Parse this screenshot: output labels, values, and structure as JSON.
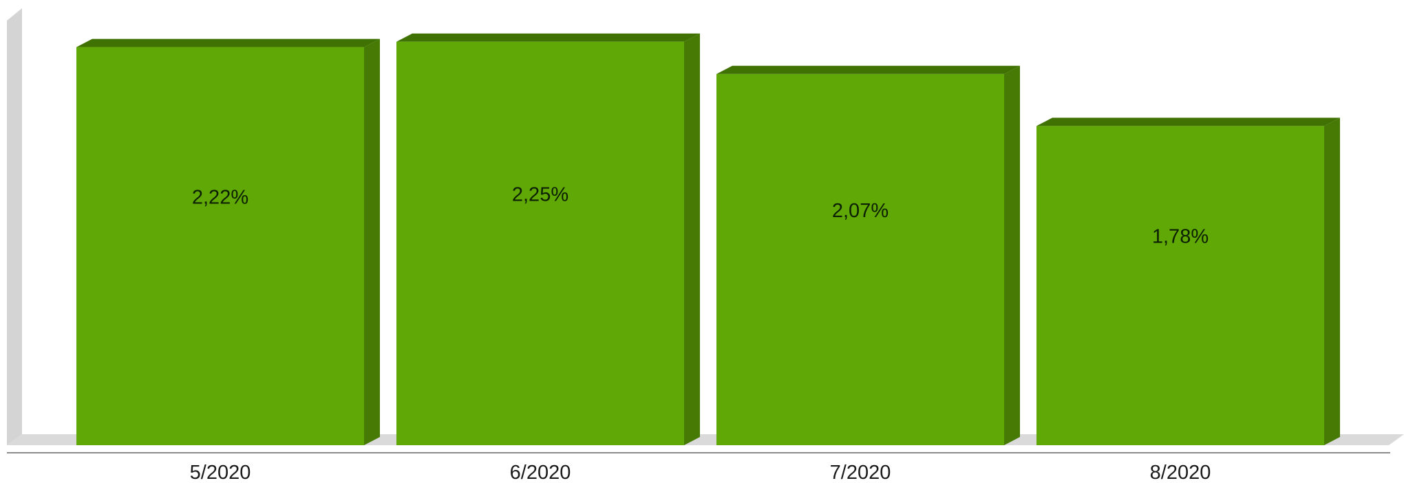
{
  "chart_data": {
    "type": "bar",
    "style": "3d",
    "title": "",
    "xlabel": "",
    "ylabel": "",
    "categories": [
      "5/2020",
      "6/2020",
      "7/2020",
      "8/2020"
    ],
    "values": [
      2.22,
      2.25,
      2.07,
      1.78
    ],
    "value_labels": [
      "2,22%",
      "2,25%",
      "2,07%",
      "1,78%"
    ],
    "ylim": [
      0,
      2.5
    ],
    "grid": false,
    "legend": "none",
    "bar_color": "#5fa805",
    "bar_side_color": "#467a05",
    "bar_top_color": "#3f7103",
    "floor_color": "#dadada",
    "wall_color": "#d4d4d4",
    "axis_color": "#8c8c8c"
  }
}
